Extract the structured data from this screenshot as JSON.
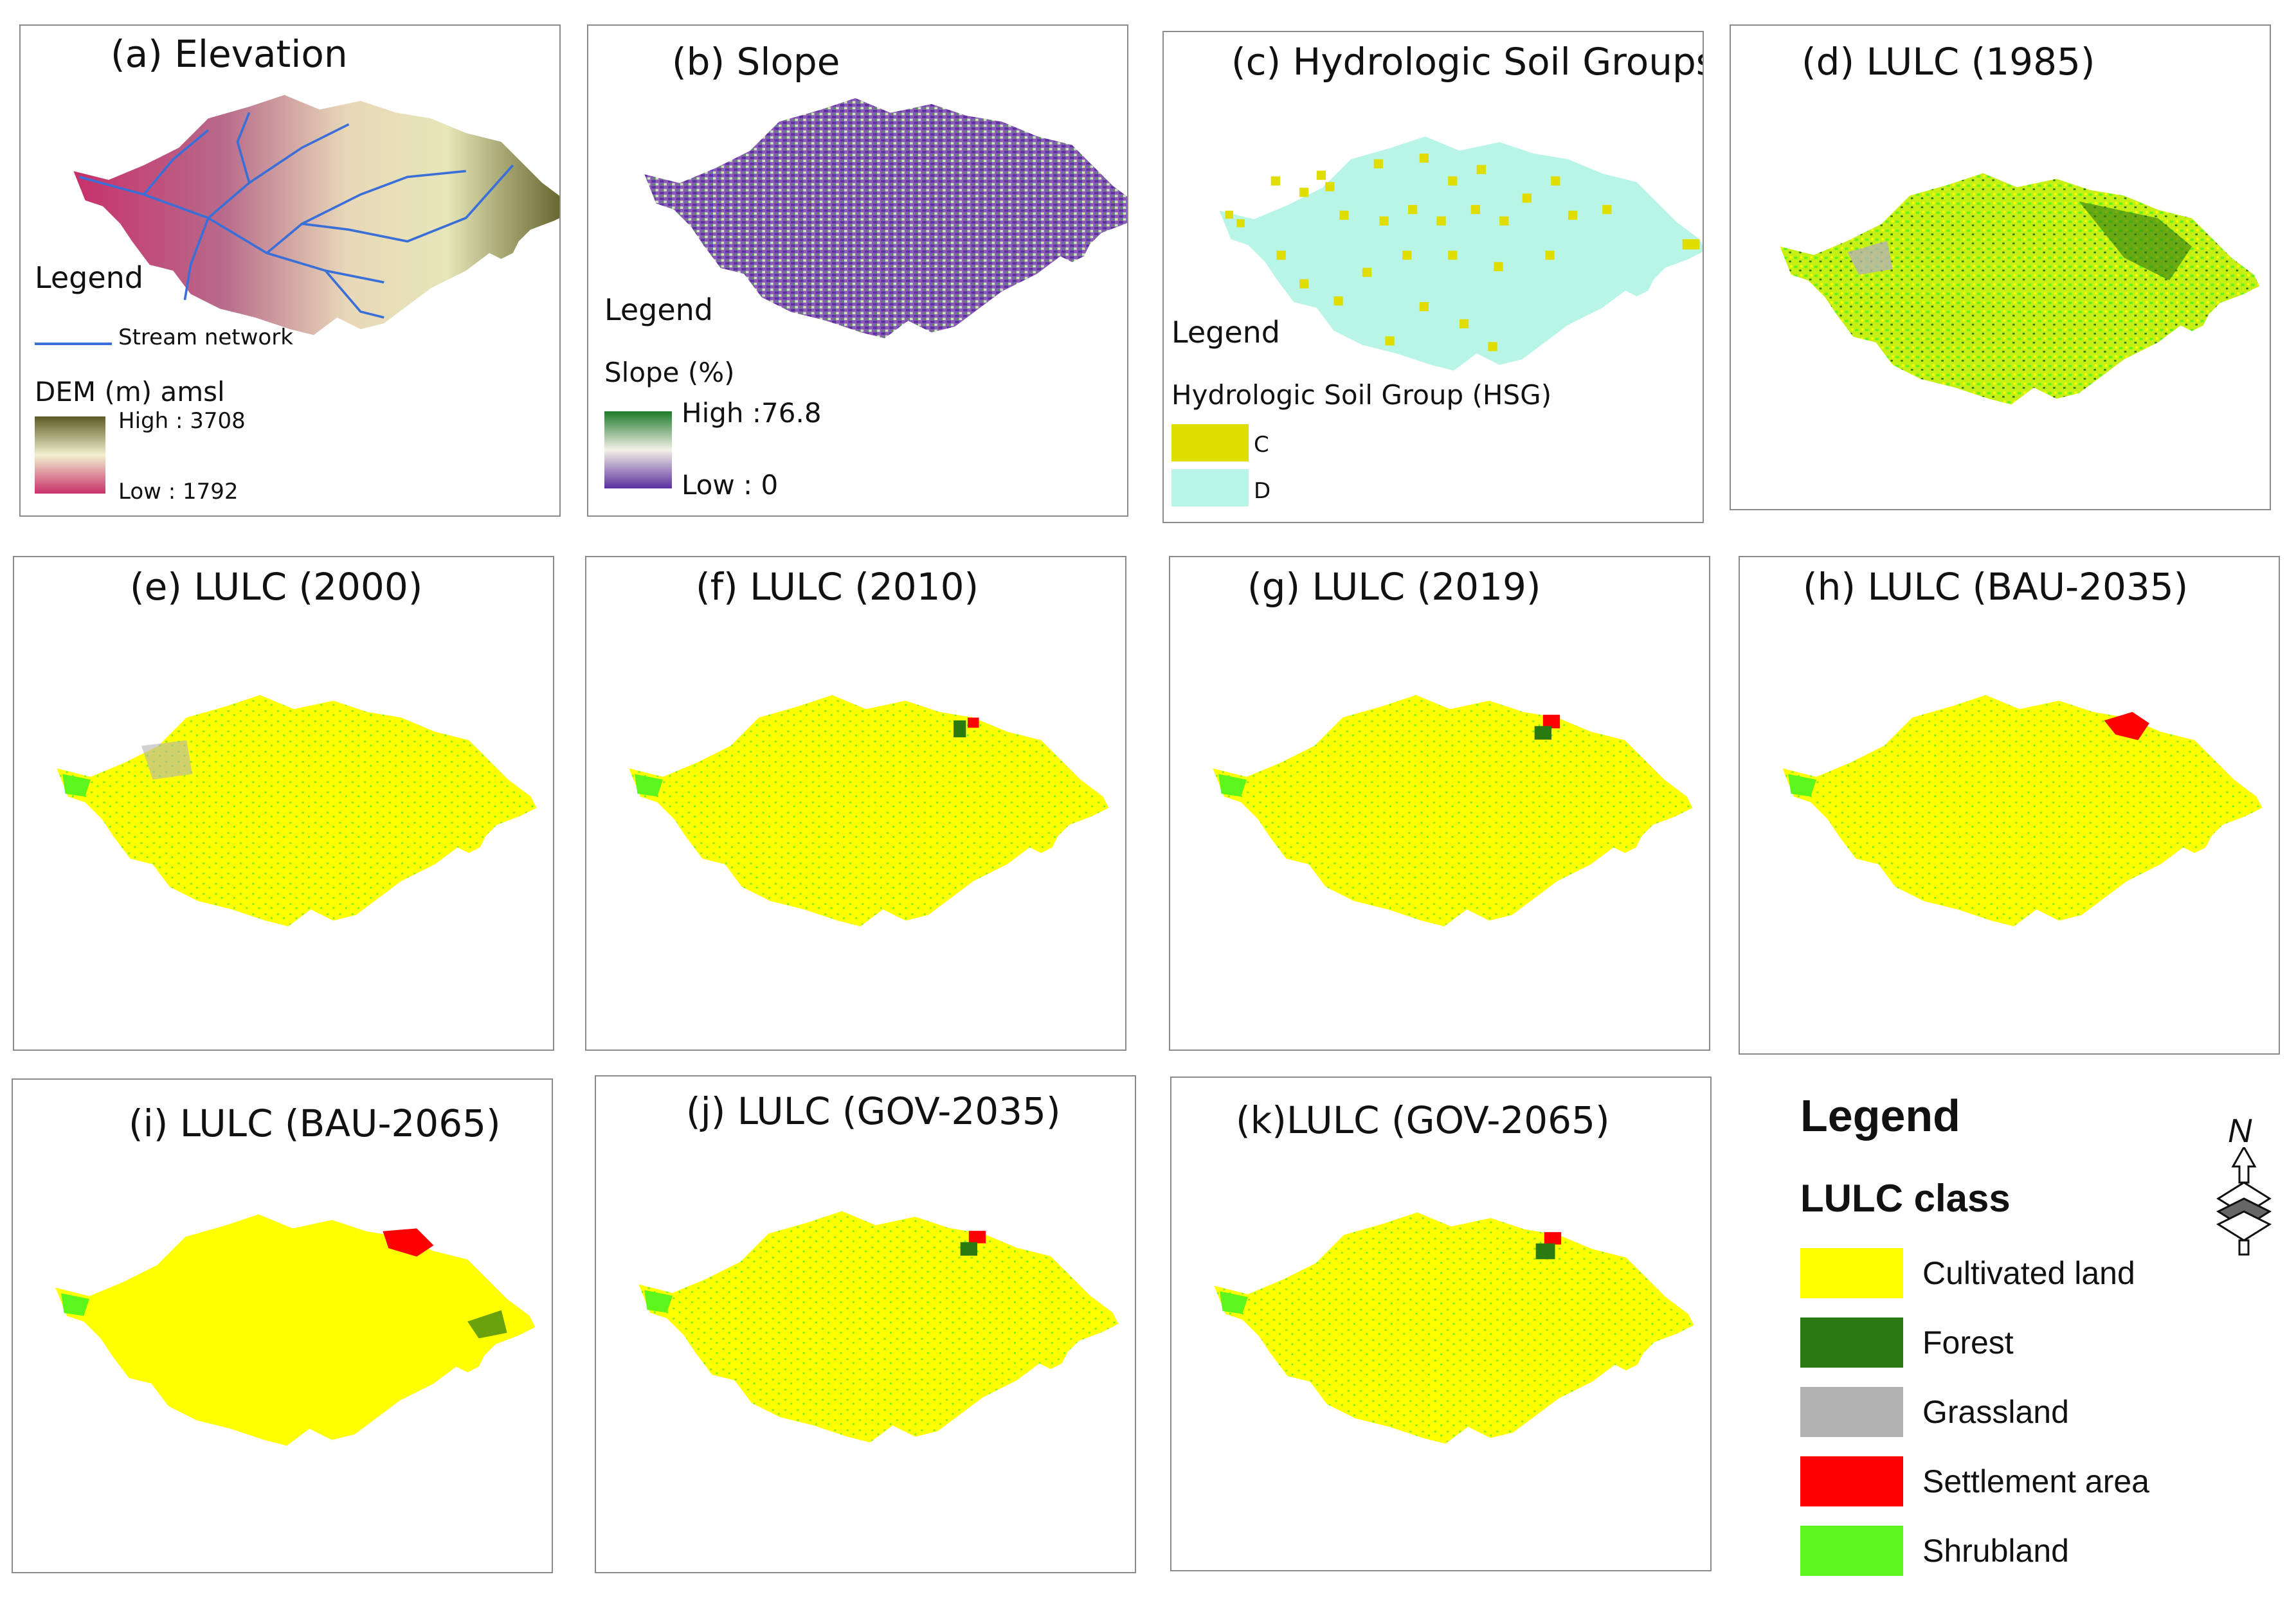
{
  "panels": {
    "a": {
      "title": "(a) Elevation",
      "legend_heading": "Legend",
      "stream_label": "Stream network",
      "dem_label": "DEM (m) amsl",
      "high_label": "High : 3708",
      "low_label": "Low : 1792",
      "colors": {
        "high": "#5c5b22",
        "mid": "#f2f0cf",
        "low": "#c8306a",
        "stream": "#3a6fd8"
      }
    },
    "b": {
      "title": "(b) Slope",
      "legend_heading": "Legend",
      "slope_label": "Slope (%)",
      "high_label": "High :76.8",
      "low_label": "Low : 0",
      "colors": {
        "high": "#1e7a2a",
        "mid": "#f4f1e8",
        "low": "#5a2f9e"
      }
    },
    "c": {
      "title": "(c) Hydrologic Soil Groups",
      "legend_heading": "Legend",
      "hsg_label": "Hydrologic Soil Group (HSG)",
      "classes": [
        {
          "label": "C",
          "color": "#e0dd00"
        },
        {
          "label": "D",
          "color": "#b8f5e6"
        }
      ]
    },
    "d": {
      "title": "(d) LULC (1985)"
    },
    "e": {
      "title": "(e) LULC (2000)"
    },
    "f": {
      "title": "(f) LULC (2010)"
    },
    "g": {
      "title": "(g) LULC (2019)"
    },
    "h": {
      "title": "(h) LULC (BAU-2035)"
    },
    "i": {
      "title": "(i) LULC (BAU-2065)"
    },
    "j": {
      "title": "(j) LULC (GOV-2035)"
    },
    "k": {
      "title": "(k)LULC (GOV-2065)"
    }
  },
  "lulc_legend": {
    "heading": "Legend",
    "subheading": "LULC class",
    "north_label": "N",
    "classes": [
      {
        "label": "Cultivated land",
        "color": "#ffff00"
      },
      {
        "label": "Forest",
        "color": "#2a7a12"
      },
      {
        "label": "Grassland",
        "color": "#b3b3b3"
      },
      {
        "label": "Settlement area",
        "color": "#ff0000"
      },
      {
        "label": "Shrubland",
        "color": "#5cf51c"
      }
    ]
  }
}
